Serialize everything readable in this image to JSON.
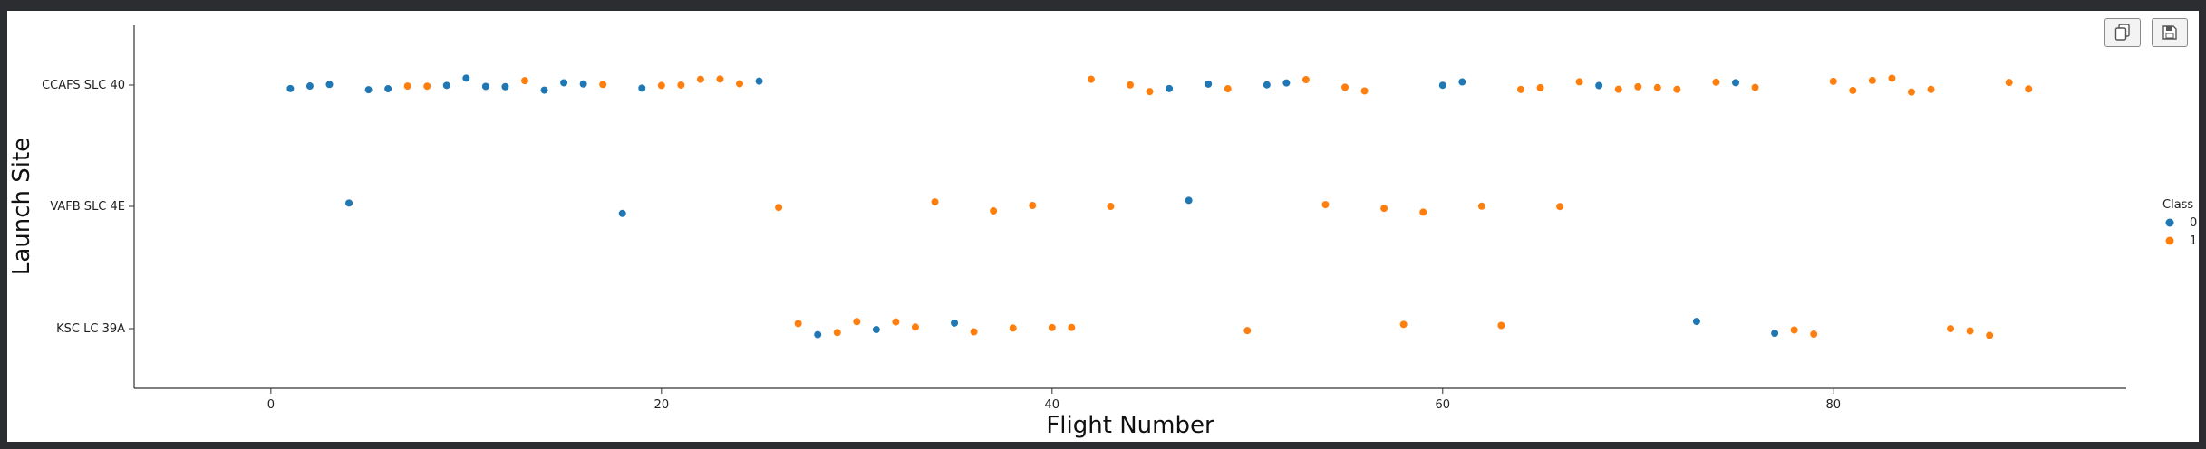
{
  "chart_data": {
    "type": "scatter",
    "title": "",
    "xlabel": "Flight Number",
    "ylabel": "Launch Site",
    "xlim": [
      -7,
      95
    ],
    "xticks": [
      "0",
      "20",
      "40",
      "60",
      "80"
    ],
    "categories": [
      "CCAFS SLC 40",
      "VAFB SLC 4E",
      "KSC LC 39A"
    ],
    "legend": {
      "title": "Class",
      "position": "right",
      "entries": [
        "0",
        "1"
      ]
    },
    "colors": {
      "0": "#1f77b4",
      "1": "#ff7f0e"
    },
    "series": [
      {
        "name": "0",
        "points": [
          {
            "x": 1,
            "y": "CCAFS SLC 40"
          },
          {
            "x": 2,
            "y": "CCAFS SLC 40"
          },
          {
            "x": 3,
            "y": "CCAFS SLC 40"
          },
          {
            "x": 4,
            "y": "VAFB SLC 4E"
          },
          {
            "x": 5,
            "y": "CCAFS SLC 40"
          },
          {
            "x": 6,
            "y": "CCAFS SLC 40"
          },
          {
            "x": 9,
            "y": "CCAFS SLC 40"
          },
          {
            "x": 10,
            "y": "CCAFS SLC 40"
          },
          {
            "x": 11,
            "y": "CCAFS SLC 40"
          },
          {
            "x": 12,
            "y": "CCAFS SLC 40"
          },
          {
            "x": 14,
            "y": "CCAFS SLC 40"
          },
          {
            "x": 15,
            "y": "CCAFS SLC 40"
          },
          {
            "x": 16,
            "y": "CCAFS SLC 40"
          },
          {
            "x": 18,
            "y": "VAFB SLC 4E"
          },
          {
            "x": 19,
            "y": "CCAFS SLC 40"
          },
          {
            "x": 25,
            "y": "CCAFS SLC 40"
          },
          {
            "x": 28,
            "y": "KSC LC 39A"
          },
          {
            "x": 31,
            "y": "KSC LC 39A"
          },
          {
            "x": 35,
            "y": "KSC LC 39A"
          },
          {
            "x": 46,
            "y": "CCAFS SLC 40"
          },
          {
            "x": 47,
            "y": "VAFB SLC 4E"
          },
          {
            "x": 48,
            "y": "CCAFS SLC 40"
          },
          {
            "x": 51,
            "y": "CCAFS SLC 40"
          },
          {
            "x": 52,
            "y": "CCAFS SLC 40"
          },
          {
            "x": 60,
            "y": "CCAFS SLC 40"
          },
          {
            "x": 61,
            "y": "CCAFS SLC 40"
          },
          {
            "x": 68,
            "y": "CCAFS SLC 40"
          },
          {
            "x": 73,
            "y": "KSC LC 39A"
          },
          {
            "x": 75,
            "y": "CCAFS SLC 40"
          },
          {
            "x": 77,
            "y": "KSC LC 39A"
          }
        ]
      },
      {
        "name": "1",
        "points": [
          {
            "x": 7,
            "y": "CCAFS SLC 40"
          },
          {
            "x": 8,
            "y": "CCAFS SLC 40"
          },
          {
            "x": 13,
            "y": "CCAFS SLC 40"
          },
          {
            "x": 17,
            "y": "CCAFS SLC 40"
          },
          {
            "x": 20,
            "y": "CCAFS SLC 40"
          },
          {
            "x": 21,
            "y": "CCAFS SLC 40"
          },
          {
            "x": 22,
            "y": "CCAFS SLC 40"
          },
          {
            "x": 23,
            "y": "CCAFS SLC 40"
          },
          {
            "x": 24,
            "y": "CCAFS SLC 40"
          },
          {
            "x": 26,
            "y": "VAFB SLC 4E"
          },
          {
            "x": 27,
            "y": "KSC LC 39A"
          },
          {
            "x": 29,
            "y": "KSC LC 39A"
          },
          {
            "x": 30,
            "y": "KSC LC 39A"
          },
          {
            "x": 32,
            "y": "KSC LC 39A"
          },
          {
            "x": 33,
            "y": "KSC LC 39A"
          },
          {
            "x": 34,
            "y": "VAFB SLC 4E"
          },
          {
            "x": 36,
            "y": "KSC LC 39A"
          },
          {
            "x": 37,
            "y": "VAFB SLC 4E"
          },
          {
            "x": 38,
            "y": "KSC LC 39A"
          },
          {
            "x": 39,
            "y": "VAFB SLC 4E"
          },
          {
            "x": 40,
            "y": "KSC LC 39A"
          },
          {
            "x": 41,
            "y": "KSC LC 39A"
          },
          {
            "x": 42,
            "y": "CCAFS SLC 40"
          },
          {
            "x": 43,
            "y": "VAFB SLC 4E"
          },
          {
            "x": 44,
            "y": "CCAFS SLC 40"
          },
          {
            "x": 45,
            "y": "CCAFS SLC 40"
          },
          {
            "x": 49,
            "y": "CCAFS SLC 40"
          },
          {
            "x": 50,
            "y": "KSC LC 39A"
          },
          {
            "x": 53,
            "y": "CCAFS SLC 40"
          },
          {
            "x": 54,
            "y": "VAFB SLC 4E"
          },
          {
            "x": 55,
            "y": "CCAFS SLC 40"
          },
          {
            "x": 56,
            "y": "CCAFS SLC 40"
          },
          {
            "x": 57,
            "y": "VAFB SLC 4E"
          },
          {
            "x": 58,
            "y": "KSC LC 39A"
          },
          {
            "x": 59,
            "y": "VAFB SLC 4E"
          },
          {
            "x": 62,
            "y": "VAFB SLC 4E"
          },
          {
            "x": 63,
            "y": "KSC LC 39A"
          },
          {
            "x": 64,
            "y": "CCAFS SLC 40"
          },
          {
            "x": 65,
            "y": "CCAFS SLC 40"
          },
          {
            "x": 66,
            "y": "VAFB SLC 4E"
          },
          {
            "x": 67,
            "y": "CCAFS SLC 40"
          },
          {
            "x": 69,
            "y": "CCAFS SLC 40"
          },
          {
            "x": 70,
            "y": "CCAFS SLC 40"
          },
          {
            "x": 71,
            "y": "CCAFS SLC 40"
          },
          {
            "x": 72,
            "y": "CCAFS SLC 40"
          },
          {
            "x": 74,
            "y": "CCAFS SLC 40"
          },
          {
            "x": 76,
            "y": "CCAFS SLC 40"
          },
          {
            "x": 78,
            "y": "KSC LC 39A"
          },
          {
            "x": 79,
            "y": "KSC LC 39A"
          },
          {
            "x": 80,
            "y": "CCAFS SLC 40"
          },
          {
            "x": 81,
            "y": "CCAFS SLC 40"
          },
          {
            "x": 82,
            "y": "CCAFS SLC 40"
          },
          {
            "x": 83,
            "y": "CCAFS SLC 40"
          },
          {
            "x": 84,
            "y": "CCAFS SLC 40"
          },
          {
            "x": 85,
            "y": "CCAFS SLC 40"
          },
          {
            "x": 86,
            "y": "KSC LC 39A"
          },
          {
            "x": 87,
            "y": "KSC LC 39A"
          },
          {
            "x": 88,
            "y": "KSC LC 39A"
          },
          {
            "x": 89,
            "y": "CCAFS SLC 40"
          },
          {
            "x": 90,
            "y": "CCAFS SLC 40"
          }
        ]
      }
    ]
  },
  "toolbar": {
    "copy_icon": "copy-icon",
    "save_icon": "save-icon"
  }
}
